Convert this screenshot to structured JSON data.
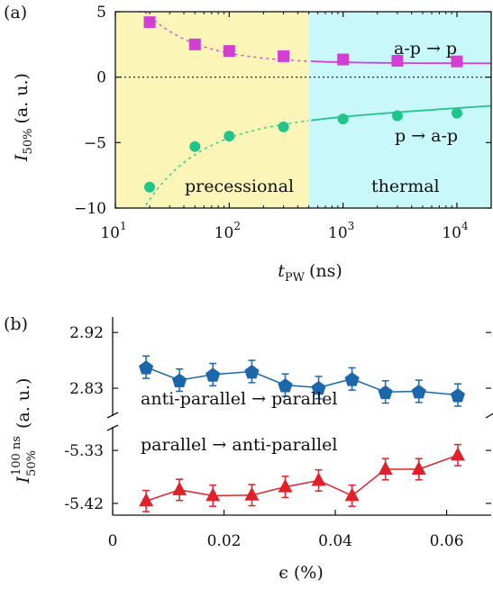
{
  "chart_data": [
    {
      "panel": "(a)",
      "type": "scatter",
      "ylabel": "I50%",
      "ylabel_main": "I",
      "ylabel_sub": "50%",
      "ylabel_unit": "(a. u.)",
      "xlabel": "tPW (ns)",
      "xlabel_main": "t",
      "xlabel_sub": "PW",
      "xlabel_unit": "(ns)",
      "xscale": "log",
      "xlim": [
        10,
        20000
      ],
      "ylim": [
        -10,
        5
      ],
      "xtick_labels": [
        "10",
        "10",
        "10",
        "10"
      ],
      "xtick_exponents": [
        "1",
        "2",
        "3",
        "4"
      ],
      "xtick_values": [
        10,
        100,
        1000,
        10000
      ],
      "ytick_labels": [
        "5",
        "0",
        "−5",
        "−10"
      ],
      "ytick_values": [
        5,
        0,
        -5,
        -10
      ],
      "regions": [
        {
          "label": "precessional",
          "x_range": [
            10,
            500
          ],
          "color": "#fbf6b8"
        },
        {
          "label": "thermal",
          "x_range": [
            500,
            20000
          ],
          "color": "#c9f8fb"
        }
      ],
      "reference_line": {
        "y": 0,
        "style": "dotted"
      },
      "series": [
        {
          "name": "a-p → p",
          "marker": "square",
          "color": "#d23fd2",
          "x": [
            20,
            50,
            100,
            300,
            1000,
            3000,
            10000
          ],
          "y": [
            4.2,
            2.5,
            2.0,
            1.6,
            1.35,
            1.25,
            1.2
          ]
        },
        {
          "name": "p → a-p",
          "marker": "circle",
          "color": "#1fc58a",
          "x": [
            20,
            50,
            100,
            300,
            1000,
            3000,
            10000
          ],
          "y": [
            -8.4,
            -5.3,
            -4.5,
            -3.8,
            -3.2,
            -2.95,
            -2.75
          ]
        }
      ]
    },
    {
      "panel": "(b)",
      "type": "line",
      "ylabel_main": "I",
      "ylabel_sub": "50%",
      "ylabel_sup": "100 ns",
      "ylabel_unit": "(a. u.)",
      "xlabel": "ϵ (%)",
      "xlim": [
        0,
        0.068
      ],
      "broken_yaxis": true,
      "xtick_labels": [
        "0",
        "0.02",
        "0.04",
        "0.06"
      ],
      "xtick_values": [
        0,
        0.02,
        0.04,
        0.06
      ],
      "upper_ylim": [
        2.785,
        2.945
      ],
      "upper_ytick_labels": [
        "2.92",
        "2.83"
      ],
      "upper_ytick_values": [
        2.92,
        2.83
      ],
      "lower_ylim": [
        -5.44,
        -5.29
      ],
      "lower_ytick_labels": [
        "-5.33",
        "-5.42"
      ],
      "lower_ytick_values": [
        -5.33,
        -5.42
      ],
      "series": [
        {
          "name": "anti-parallel → parallel",
          "marker": "pentagon",
          "color": "#1b67aa",
          "x": [
            0.006,
            0.012,
            0.018,
            0.025,
            0.031,
            0.037,
            0.043,
            0.049,
            0.055,
            0.062
          ],
          "y": [
            2.864,
            2.843,
            2.852,
            2.857,
            2.835,
            2.831,
            2.845,
            2.824,
            2.825,
            2.819
          ],
          "err": [
            0.018,
            0.018,
            0.018,
            0.018,
            0.018,
            0.018,
            0.018,
            0.018,
            0.018,
            0.018
          ]
        },
        {
          "name": "parallel → anti-parallel",
          "marker": "triangle",
          "color": "#e0202a",
          "x": [
            0.006,
            0.012,
            0.018,
            0.025,
            0.031,
            0.037,
            0.043,
            0.049,
            0.055,
            0.062
          ],
          "y": [
            -5.416,
            -5.397,
            -5.407,
            -5.406,
            -5.392,
            -5.381,
            -5.407,
            -5.362,
            -5.362,
            -5.338
          ],
          "err": [
            0.018,
            0.018,
            0.018,
            0.018,
            0.018,
            0.018,
            0.018,
            0.018,
            0.018,
            0.018
          ]
        }
      ]
    }
  ]
}
